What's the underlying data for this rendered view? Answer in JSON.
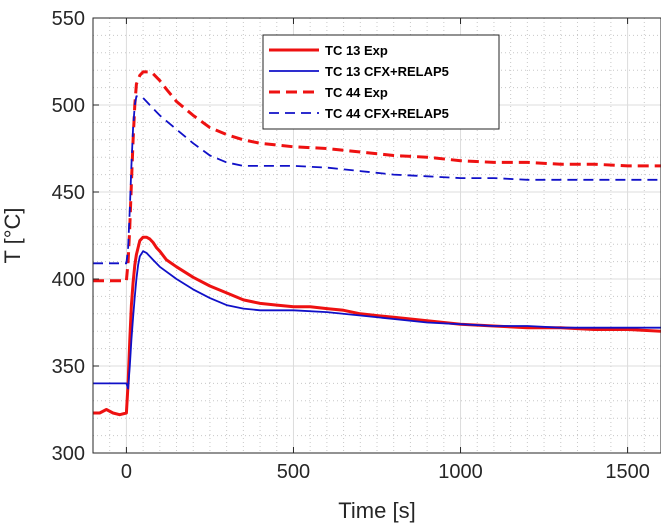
{
  "chart_data": {
    "type": "line",
    "title": "",
    "xlabel": "Time [s]",
    "ylabel": "T [°C]",
    "xlim": [
      -100,
      1600
    ],
    "ylim": [
      300,
      550
    ],
    "xticks": [
      0,
      500,
      1000,
      1500
    ],
    "yticks": [
      300,
      350,
      400,
      450,
      500,
      550
    ],
    "xtick_labels": [
      "0",
      "500",
      "1000",
      "1500"
    ],
    "ytick_labels": [
      "300",
      "350",
      "400",
      "450",
      "500",
      "550"
    ],
    "grid": "on (major solid, minor dotted)",
    "legend_position": "top-right",
    "series": [
      {
        "name": "TC 13 Exp",
        "color": "#ee1111",
        "style": "solid",
        "x": [
          -100,
          -80,
          -60,
          -40,
          -20,
          0,
          5,
          10,
          15,
          20,
          25,
          30,
          35,
          40,
          50,
          60,
          70,
          80,
          90,
          100,
          120,
          150,
          200,
          250,
          300,
          350,
          400,
          450,
          500,
          550,
          600,
          650,
          700,
          800,
          900,
          1000,
          1100,
          1200,
          1300,
          1400,
          1500,
          1600
        ],
        "y": [
          323,
          323,
          325,
          323,
          322,
          323,
          340,
          365,
          385,
          398,
          408,
          414,
          418,
          422,
          424,
          424,
          423,
          421,
          418,
          416,
          411,
          407,
          401,
          396,
          392,
          388,
          386,
          385,
          384,
          384,
          383,
          382,
          380,
          378,
          376,
          374,
          373,
          372,
          372,
          371,
          371,
          370
        ]
      },
      {
        "name": "TC 13 CFX+RELAP5",
        "color": "#1010c8",
        "style": "solid",
        "x": [
          -100,
          -50,
          0,
          5,
          10,
          15,
          20,
          25,
          30,
          35,
          40,
          50,
          60,
          70,
          80,
          100,
          150,
          200,
          250,
          300,
          350,
          400,
          500,
          600,
          700,
          800,
          900,
          1000,
          1100,
          1200,
          1300,
          1400,
          1500,
          1600
        ],
        "y": [
          340,
          340,
          340,
          337,
          350,
          365,
          378,
          390,
          400,
          408,
          413,
          416,
          415,
          413,
          411,
          407,
          400,
          394,
          389,
          385,
          383,
          382,
          382,
          381,
          379,
          377,
          375,
          374,
          373,
          373,
          372,
          372,
          372,
          372
        ]
      },
      {
        "name": "TC 44 Exp",
        "color": "#ee1111",
        "style": "dashed",
        "x": [
          -100,
          -50,
          0,
          5,
          10,
          15,
          20,
          25,
          30,
          40,
          50,
          60,
          70,
          80,
          100,
          120,
          150,
          200,
          250,
          300,
          350,
          400,
          500,
          600,
          700,
          800,
          900,
          1000,
          1100,
          1200,
          1300,
          1400,
          1500,
          1600
        ],
        "y": [
          399,
          399,
          399,
          410,
          430,
          455,
          480,
          500,
          512,
          517,
          519,
          519,
          519,
          518,
          514,
          509,
          502,
          494,
          487,
          483,
          480,
          478,
          476,
          475,
          473,
          471,
          470,
          468,
          467,
          467,
          466,
          466,
          465,
          465
        ]
      },
      {
        "name": "TC 44 CFX+RELAP5",
        "color": "#1010c8",
        "style": "dashed",
        "x": [
          -100,
          -50,
          0,
          5,
          10,
          15,
          20,
          25,
          30,
          40,
          50,
          60,
          70,
          80,
          100,
          150,
          200,
          250,
          300,
          350,
          400,
          500,
          600,
          700,
          800,
          900,
          1000,
          1100,
          1200,
          1300,
          1400,
          1500,
          1600
        ],
        "y": [
          409,
          409,
          409,
          418,
          440,
          465,
          487,
          500,
          505,
          505,
          504,
          502,
          500,
          498,
          494,
          486,
          478,
          471,
          467,
          465,
          465,
          465,
          464,
          462,
          460,
          459,
          458,
          458,
          457,
          457,
          457,
          457,
          457
        ]
      }
    ]
  }
}
